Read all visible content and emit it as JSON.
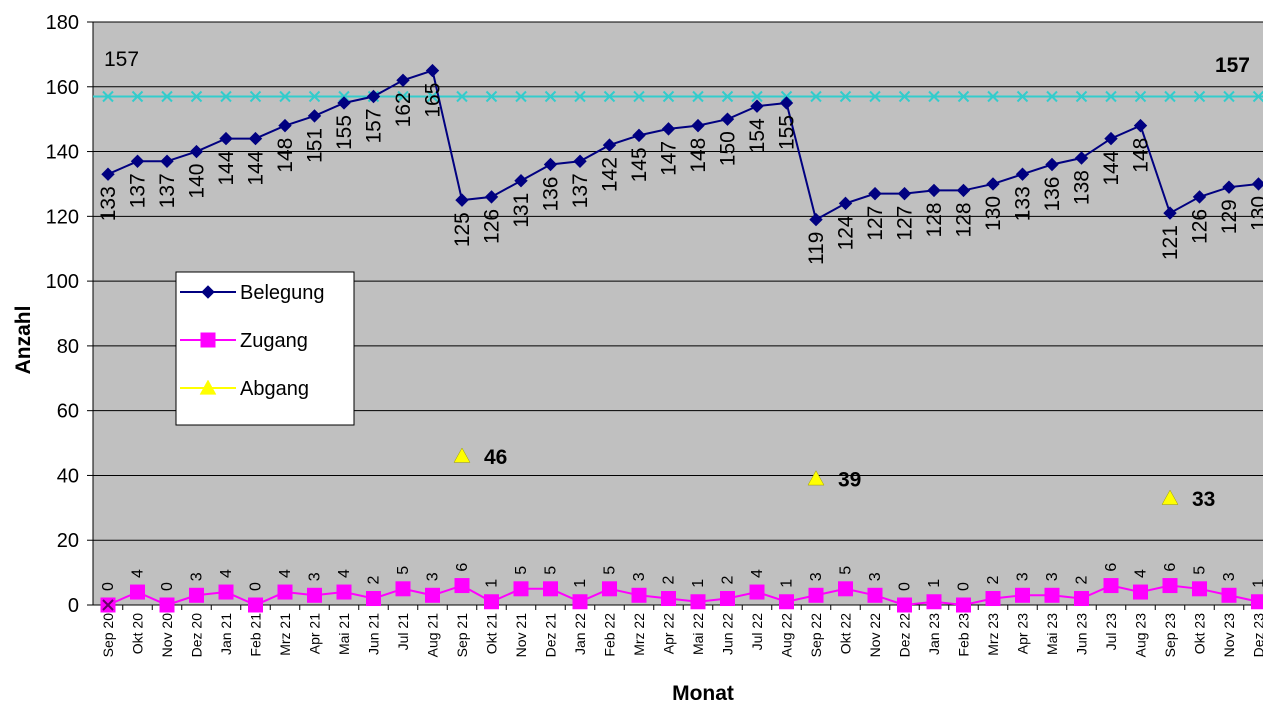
{
  "chart_data": {
    "type": "line",
    "title": "",
    "xlabel": "Monat",
    "ylabel": "Anzahl",
    "ylim": [
      0,
      180
    ],
    "yticks": [
      0,
      20,
      40,
      60,
      80,
      100,
      120,
      140,
      160,
      180
    ],
    "grid": "horizontal",
    "plot_background": "#c0c0c0",
    "legend_position": "left-middle",
    "categories": [
      "Sep 20",
      "Okt 20",
      "Nov 20",
      "Dez 20",
      "Jan 21",
      "Feb 21",
      "Mrz 21",
      "Apr 21",
      "Mai 21",
      "Jun 21",
      "Jul 21",
      "Aug 21",
      "Sep 21",
      "Okt 21",
      "Nov 21",
      "Dez 21",
      "Jan 22",
      "Feb 22",
      "Mrz 22",
      "Apr 22",
      "Mai 22",
      "Jun 22",
      "Jul 22",
      "Aug 22",
      "Sep 22",
      "Okt 22",
      "Nov 22",
      "Dez 22",
      "Jan 23",
      "Feb 23",
      "Mrz 23",
      "Apr 23",
      "Mai 23",
      "Jun 23",
      "Jul 23",
      "Aug 23",
      "Sep 23",
      "Okt 23",
      "Nov 23",
      "Dez 23"
    ],
    "series": [
      {
        "name": "Belegung",
        "color": "#000080",
        "marker": "diamond",
        "values": [
          133,
          137,
          137,
          140,
          144,
          144,
          148,
          151,
          155,
          157,
          162,
          165,
          125,
          126,
          131,
          136,
          137,
          142,
          145,
          147,
          148,
          150,
          154,
          155,
          119,
          124,
          127,
          127,
          128,
          128,
          130,
          133,
          136,
          138,
          144,
          148,
          121,
          126,
          129,
          130
        ]
      },
      {
        "name": "Zugang",
        "color": "#ff00ff",
        "marker": "square",
        "values": [
          0,
          4,
          0,
          3,
          4,
          0,
          4,
          3,
          4,
          2,
          5,
          3,
          6,
          1,
          5,
          5,
          1,
          5,
          3,
          2,
          1,
          2,
          4,
          1,
          3,
          5,
          3,
          0,
          1,
          0,
          2,
          3,
          3,
          2,
          6,
          4,
          6,
          5,
          3,
          1
        ]
      },
      {
        "name": "Abgang",
        "color": "#ffff00",
        "marker": "triangle",
        "points": [
          {
            "x": "Sep 21",
            "y": 46
          },
          {
            "x": "Sep 22",
            "y": 39
          },
          {
            "x": "Sep 23",
            "y": 33
          }
        ]
      }
    ],
    "reference_line": {
      "color": "#33cccc",
      "marker": "x",
      "value": 157
    },
    "annotations": {
      "left": "157",
      "right": "157"
    }
  }
}
